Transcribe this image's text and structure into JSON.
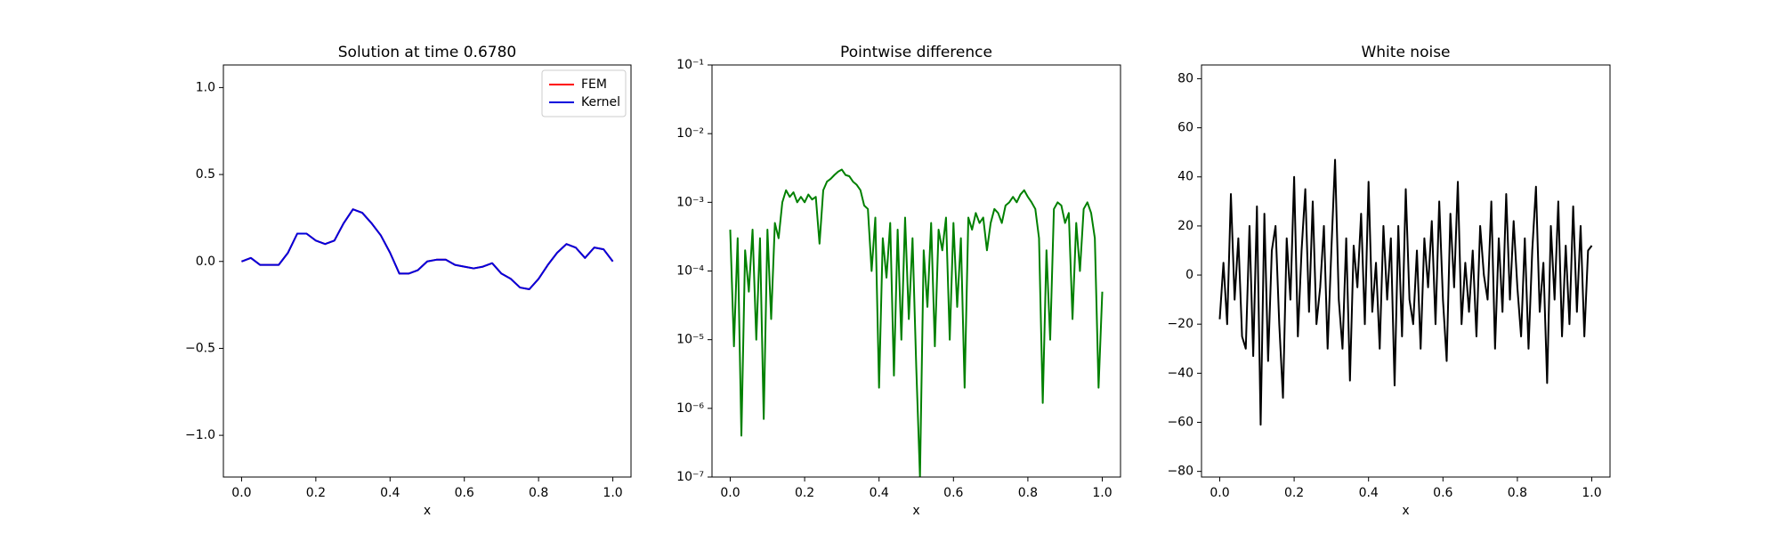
{
  "chart_data": [
    {
      "type": "line",
      "title": "Solution at time 0.6780",
      "xlabel": "x",
      "legend": "upper right",
      "x": [
        0,
        0.025,
        0.05,
        0.075,
        0.1,
        0.125,
        0.15,
        0.175,
        0.2,
        0.225,
        0.25,
        0.275,
        0.3,
        0.325,
        0.35,
        0.375,
        0.4,
        0.425,
        0.45,
        0.475,
        0.5,
        0.525,
        0.55,
        0.575,
        0.6,
        0.625,
        0.65,
        0.675,
        0.7,
        0.725,
        0.75,
        0.775,
        0.8,
        0.825,
        0.85,
        0.875,
        0.9,
        0.925,
        0.95,
        0.975,
        1
      ],
      "series": [
        {
          "name": "FEM",
          "color": "#ff0000",
          "values": [
            0,
            0.02,
            -0.02,
            -0.02,
            -0.02,
            0.05,
            0.16,
            0.16,
            0.12,
            0.1,
            0.12,
            0.22,
            0.3,
            0.28,
            0.22,
            0.15,
            0.05,
            -0.07,
            -0.07,
            -0.05,
            0,
            0.01,
            0.01,
            -0.02,
            -0.03,
            -0.04,
            -0.03,
            -0.01,
            -0.07,
            -0.1,
            -0.15,
            -0.16,
            -0.1,
            -0.02,
            0.05,
            0.1,
            0.08,
            0.02,
            0.08,
            0.07,
            0
          ]
        },
        {
          "name": "Kernel",
          "color": "#0000dd",
          "values": [
            0,
            0.02,
            -0.02,
            -0.02,
            -0.02,
            0.05,
            0.16,
            0.16,
            0.12,
            0.1,
            0.12,
            0.22,
            0.3,
            0.28,
            0.22,
            0.15,
            0.05,
            -0.07,
            -0.07,
            -0.05,
            0,
            0.01,
            0.01,
            -0.02,
            -0.03,
            -0.04,
            -0.03,
            -0.01,
            -0.07,
            -0.1,
            -0.15,
            -0.16,
            -0.1,
            -0.02,
            0.05,
            0.1,
            0.08,
            0.02,
            0.08,
            0.07,
            0
          ]
        }
      ],
      "xlim": [
        -0.049,
        1.049
      ],
      "xticks": [
        {
          "value": 0,
          "label": "0.0"
        },
        {
          "value": 0.2,
          "label": "0.2"
        },
        {
          "value": 0.4,
          "label": "0.4"
        },
        {
          "value": 0.6,
          "label": "0.6"
        },
        {
          "value": 0.8,
          "label": "0.8"
        },
        {
          "value": 1,
          "label": "1.0"
        }
      ],
      "ylim": [
        -1.24,
        1.13
      ],
      "yticks": [
        {
          "value": -1,
          "label": "−1.0"
        },
        {
          "value": -0.5,
          "label": "−0.5"
        },
        {
          "value": 0,
          "label": "0.0"
        },
        {
          "value": 0.5,
          "label": "0.5"
        },
        {
          "value": 1,
          "label": "1.0"
        }
      ]
    },
    {
      "type": "line",
      "title": "Pointwise difference",
      "xlabel": "x",
      "yscale": "log",
      "color": "#008000",
      "x": [
        0,
        0.01,
        0.02,
        0.03,
        0.04,
        0.05,
        0.06,
        0.07,
        0.08,
        0.09,
        0.1,
        0.11,
        0.12,
        0.13,
        0.14,
        0.15,
        0.16,
        0.17,
        0.18,
        0.19,
        0.2,
        0.21,
        0.22,
        0.23,
        0.24,
        0.25,
        0.26,
        0.27,
        0.28,
        0.29,
        0.3,
        0.31,
        0.32,
        0.33,
        0.34,
        0.35,
        0.36,
        0.37,
        0.38,
        0.39,
        0.4,
        0.41,
        0.42,
        0.43,
        0.44,
        0.45,
        0.46,
        0.47,
        0.48,
        0.49,
        0.5,
        0.51,
        0.52,
        0.53,
        0.54,
        0.55,
        0.56,
        0.57,
        0.58,
        0.59,
        0.6,
        0.61,
        0.62,
        0.63,
        0.64,
        0.65,
        0.66,
        0.67,
        0.68,
        0.69,
        0.7,
        0.71,
        0.72,
        0.73,
        0.74,
        0.75,
        0.76,
        0.77,
        0.78,
        0.79,
        0.8,
        0.81,
        0.82,
        0.83,
        0.84,
        0.85,
        0.86,
        0.87,
        0.88,
        0.89,
        0.9,
        0.91,
        0.92,
        0.93,
        0.94,
        0.95,
        0.96,
        0.97,
        0.98,
        0.99,
        1
      ],
      "values": [
        0.0004,
        8e-06,
        0.0003,
        4e-07,
        0.0002,
        5e-05,
        0.0004,
        1e-05,
        0.0003,
        7e-07,
        0.0004,
        2e-05,
        0.0005,
        0.0003,
        0.001,
        0.0015,
        0.0012,
        0.0014,
        0.001,
        0.0012,
        0.001,
        0.0013,
        0.0011,
        0.0012,
        0.00025,
        0.0015,
        0.002,
        0.0022,
        0.0025,
        0.0028,
        0.003,
        0.0025,
        0.0024,
        0.002,
        0.0018,
        0.0015,
        0.0009,
        0.0008,
        0.0001,
        0.0006,
        2e-06,
        0.0003,
        8e-05,
        0.0005,
        3e-06,
        0.0004,
        1e-05,
        0.0006,
        2e-05,
        0.0003,
        4e-06,
        1e-07,
        0.0002,
        3e-05,
        0.0005,
        8e-06,
        0.0004,
        0.0002,
        0.0006,
        1e-05,
        0.0005,
        3e-05,
        0.0003,
        2e-06,
        0.0006,
        0.0004,
        0.0007,
        0.0005,
        0.0006,
        0.0002,
        0.0005,
        0.0008,
        0.0007,
        0.0005,
        0.0009,
        0.001,
        0.0012,
        0.001,
        0.0013,
        0.0015,
        0.0012,
        0.001,
        0.0008,
        0.0003,
        1.2e-06,
        0.0002,
        1e-05,
        0.0008,
        0.001,
        0.0009,
        0.0005,
        0.0007,
        2e-05,
        0.0005,
        0.0001,
        0.0008,
        0.001,
        0.0007,
        0.0003,
        2e-06,
        5e-05
      ],
      "xlim": [
        -0.049,
        1.049
      ],
      "xticks": [
        {
          "value": 0,
          "label": "0.0"
        },
        {
          "value": 0.2,
          "label": "0.2"
        },
        {
          "value": 0.4,
          "label": "0.4"
        },
        {
          "value": 0.6,
          "label": "0.6"
        },
        {
          "value": 0.8,
          "label": "0.8"
        },
        {
          "value": 1,
          "label": "1.0"
        }
      ],
      "ylim": [
        1e-07,
        0.1
      ],
      "yticks": [
        {
          "value": 1e-07,
          "label": "10⁻⁷"
        },
        {
          "value": 1e-06,
          "label": "10⁻⁶"
        },
        {
          "value": 1e-05,
          "label": "10⁻⁵"
        },
        {
          "value": 0.0001,
          "label": "10⁻⁴"
        },
        {
          "value": 0.001,
          "label": "10⁻³"
        },
        {
          "value": 0.01,
          "label": "10⁻²"
        },
        {
          "value": 0.1,
          "label": "10⁻¹"
        }
      ]
    },
    {
      "type": "line",
      "title": "White noise",
      "xlabel": "x",
      "color": "#000000",
      "x": [
        0,
        0.01,
        0.02,
        0.03,
        0.04,
        0.05,
        0.06,
        0.07,
        0.08,
        0.09,
        0.1,
        0.11,
        0.12,
        0.13,
        0.14,
        0.15,
        0.16,
        0.17,
        0.18,
        0.19,
        0.2,
        0.21,
        0.22,
        0.23,
        0.24,
        0.25,
        0.26,
        0.27,
        0.28,
        0.29,
        0.3,
        0.31,
        0.32,
        0.33,
        0.34,
        0.35,
        0.36,
        0.37,
        0.38,
        0.39,
        0.4,
        0.41,
        0.42,
        0.43,
        0.44,
        0.45,
        0.46,
        0.47,
        0.48,
        0.49,
        0.5,
        0.51,
        0.52,
        0.53,
        0.54,
        0.55,
        0.56,
        0.57,
        0.58,
        0.59,
        0.6,
        0.61,
        0.62,
        0.63,
        0.64,
        0.65,
        0.66,
        0.67,
        0.68,
        0.69,
        0.7,
        0.71,
        0.72,
        0.73,
        0.74,
        0.75,
        0.76,
        0.77,
        0.78,
        0.79,
        0.8,
        0.81,
        0.82,
        0.83,
        0.84,
        0.85,
        0.86,
        0.87,
        0.88,
        0.89,
        0.9,
        0.91,
        0.92,
        0.93,
        0.94,
        0.95,
        0.96,
        0.97,
        0.98,
        0.99,
        1
      ],
      "values": [
        -18,
        5,
        -20,
        33,
        -10,
        15,
        -25,
        -30,
        20,
        -33,
        28,
        -61,
        25,
        -35,
        10,
        20,
        -20,
        -50,
        15,
        -10,
        40,
        -25,
        10,
        35,
        -15,
        30,
        -20,
        -5,
        20,
        -30,
        10,
        47,
        -10,
        -30,
        15,
        -43,
        12,
        -5,
        25,
        -20,
        38,
        -15,
        5,
        -30,
        20,
        -10,
        15,
        -45,
        20,
        -25,
        35,
        -10,
        -20,
        10,
        -30,
        15,
        -5,
        22,
        -20,
        30,
        -10,
        -35,
        25,
        -5,
        38,
        -20,
        5,
        -15,
        10,
        -25,
        20,
        0,
        -10,
        30,
        -30,
        15,
        -15,
        33,
        -10,
        22,
        -5,
        -25,
        15,
        -30,
        10,
        36,
        -15,
        5,
        -44,
        20,
        -10,
        30,
        -25,
        12,
        -20,
        28,
        -15,
        20,
        -25,
        10,
        12
      ],
      "xlim": [
        -0.049,
        1.049
      ],
      "xticks": [
        {
          "value": 0,
          "label": "0.0"
        },
        {
          "value": 0.2,
          "label": "0.2"
        },
        {
          "value": 0.4,
          "label": "0.4"
        },
        {
          "value": 0.6,
          "label": "0.6"
        },
        {
          "value": 0.8,
          "label": "0.8"
        },
        {
          "value": 1,
          "label": "1.0"
        }
      ],
      "ylim": [
        -82.3,
        85.6
      ],
      "yticks": [
        {
          "value": -80,
          "label": "−80"
        },
        {
          "value": -60,
          "label": "−60"
        },
        {
          "value": -40,
          "label": "−40"
        },
        {
          "value": -20,
          "label": "−20"
        },
        0,
        20,
        40,
        60,
        80
      ]
    }
  ]
}
